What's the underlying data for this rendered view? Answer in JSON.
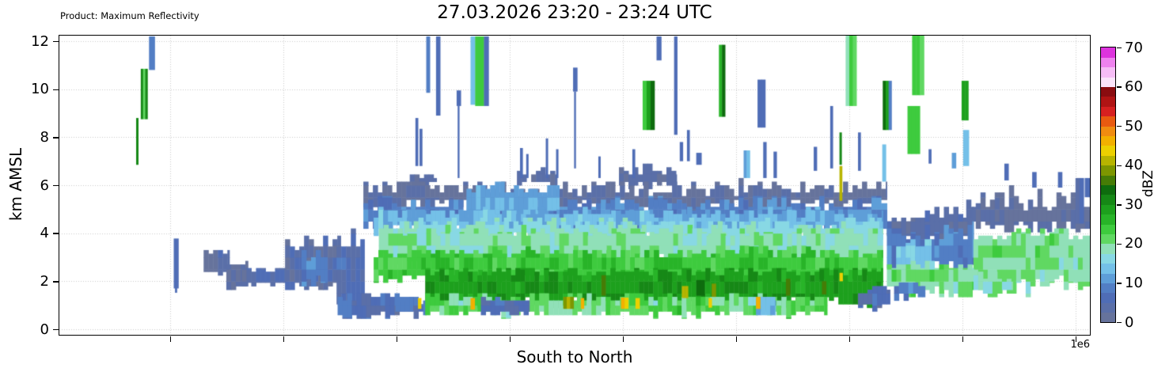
{
  "header": {
    "product_label": "Product: Maximum Reflectivity",
    "title": "27.03.2026 23:20 - 23:24 UTC"
  },
  "axes": {
    "x": {
      "label": "South to North",
      "offset_label": "1e6",
      "tick_fracs": [
        10.75,
        21.74,
        32.72,
        43.7,
        54.69,
        65.67,
        76.65,
        87.63,
        98.62
      ],
      "tick_labels_shown": false
    },
    "y": {
      "label": "km AMSL",
      "ticks": [
        0,
        2,
        4,
        6,
        8,
        10,
        12
      ],
      "range_km": [
        0,
        12.2
      ]
    }
  },
  "colorbar": {
    "label": "dBZ",
    "ticks": [
      0,
      10,
      20,
      30,
      40,
      50,
      60,
      70
    ],
    "range": [
      0,
      70
    ],
    "step_dbz": 2.5,
    "colors": [
      "#66739c",
      "#5a6fa8",
      "#4f6db6",
      "#527ec4",
      "#5e9ed8",
      "#74c0e8",
      "#88d8e4",
      "#90e0b8",
      "#60d862",
      "#3ecb3e",
      "#28b428",
      "#1da01d",
      "#168816",
      "#0e6c0e",
      "#467c06",
      "#7d9600",
      "#b7b400",
      "#ecd000",
      "#f2b000",
      "#f08c10",
      "#e85a10",
      "#d62020",
      "#b01414",
      "#8a0c10",
      "#fbe5fb",
      "#f6bdf6",
      "#ee82ee",
      "#dd33dd"
    ]
  },
  "chart_data": {
    "type": "heatmap",
    "description": "Vertical cross-section (south to north) of maximum radar reflectivity (dBZ) versus altitude (km AMSL). Stratiform precipitation layer below ~6.3 km with embedded 30-35 dBZ core at 1.3-2.6 km and isolated elevated echoes up to 12 km.",
    "noise_seed": 7,
    "region_format": [
      "x0_pct",
      "x1_pct",
      "y0_km",
      "y1_km",
      "dbz",
      "top_jitter_km",
      "bottom_jitter_km",
      "dbz_jitter"
    ],
    "regions": [
      [
        14.0,
        16.5,
        2.45,
        3.35,
        6,
        0.15,
        0.1,
        3
      ],
      [
        16.2,
        18.3,
        1.9,
        2.95,
        6,
        0.15,
        0.1,
        3
      ],
      [
        17.7,
        22.0,
        2.0,
        2.62,
        7,
        0.12,
        0.08,
        3
      ],
      [
        21.9,
        27.3,
        1.95,
        4.05,
        8,
        0.45,
        0.15,
        4
      ],
      [
        23.5,
        26.0,
        2.2,
        3.3,
        12,
        0.3,
        0.2,
        3
      ],
      [
        26.9,
        29.6,
        1.3,
        4.3,
        10,
        0.5,
        0.3,
        4
      ],
      [
        34.0,
        36.6,
        6.2,
        6.55,
        5,
        0.15,
        0.1,
        2
      ],
      [
        44.4,
        48.3,
        6.25,
        6.8,
        5,
        0.25,
        0.15,
        2
      ],
      [
        54.3,
        59.9,
        6.2,
        7.0,
        5,
        0.3,
        0.15,
        2
      ],
      [
        29.5,
        80.3,
        5.45,
        6.25,
        5,
        0.35,
        0.25,
        3
      ],
      [
        88.0,
        100,
        4.6,
        6.0,
        5,
        0.5,
        0.3,
        3
      ],
      [
        80.3,
        88.7,
        4.0,
        5.3,
        6,
        0.45,
        0.2,
        3
      ],
      [
        29.5,
        80.3,
        4.55,
        5.6,
        12,
        0.3,
        0.2,
        3
      ],
      [
        39.5,
        48.5,
        5.0,
        6.15,
        14,
        0.25,
        0.2,
        2
      ],
      [
        30.5,
        79.9,
        4.35,
        5.05,
        16,
        0.2,
        0.2,
        3
      ],
      [
        80.3,
        88.7,
        2.9,
        4.5,
        12,
        0.4,
        0.3,
        3
      ],
      [
        81.2,
        84.6,
        2.7,
        3.75,
        16,
        0.2,
        0.2,
        2
      ],
      [
        33.0,
        79.9,
        4.0,
        4.65,
        19,
        0.25,
        0.2,
        2
      ],
      [
        31.0,
        79.9,
        3.1,
        4.35,
        23,
        0.25,
        0.2,
        4
      ],
      [
        30.5,
        79.9,
        2.3,
        3.4,
        27,
        0.2,
        0.2,
        3
      ],
      [
        88.7,
        100,
        2.2,
        4.3,
        24,
        0.3,
        0.4,
        4
      ],
      [
        80.3,
        88.7,
        1.8,
        2.95,
        24,
        0.2,
        0.25,
        4
      ],
      [
        35.5,
        79.9,
        1.35,
        2.6,
        32,
        0.2,
        0.25,
        3
      ],
      [
        27.0,
        35.6,
        0.75,
        1.6,
        11,
        0.25,
        0.15,
        5
      ],
      [
        35.5,
        74.5,
        0.78,
        1.5,
        26,
        0.15,
        0.15,
        5
      ],
      [
        88.7,
        92.5,
        1.8,
        2.45,
        22,
        0.2,
        0.2,
        3
      ],
      [
        81.0,
        84.0,
        1.55,
        2.05,
        12,
        0.15,
        0.15,
        3
      ],
      [
        32.6,
        34.3,
        0.82,
        1.38,
        11,
        0.1,
        0.1,
        3
      ],
      [
        40.9,
        45.6,
        0.8,
        1.32,
        9,
        0.1,
        0.1,
        4
      ],
      [
        67.6,
        69.5,
        0.73,
        1.38,
        15,
        0.1,
        0.1,
        2
      ],
      [
        77.5,
        80.6,
        1.1,
        1.75,
        10,
        0.15,
        0.15,
        4
      ]
    ],
    "cell_format": [
      "x0_pct",
      "x1_pct",
      "y0_km",
      "y1_km",
      "dbz",
      "optional_substrip_dbz_list"
    ],
    "cells": [
      [
        8.7,
        9.25,
        10.8,
        12.2,
        8
      ],
      [
        7.9,
        8.55,
        8.75,
        10.85,
        25,
        [
          32,
          22,
          30
        ]
      ],
      [
        7.45,
        7.65,
        6.85,
        8.8,
        31
      ],
      [
        11.1,
        11.55,
        1.7,
        3.78,
        7
      ],
      [
        11.22,
        11.4,
        1.52,
        1.72,
        6
      ],
      [
        34.55,
        34.8,
        6.8,
        8.8,
        6
      ],
      [
        34.95,
        35.2,
        6.8,
        8.35,
        6
      ],
      [
        35.6,
        35.95,
        9.85,
        12.2,
        8
      ],
      [
        36.55,
        36.95,
        8.9,
        12.2,
        7
      ],
      [
        38.55,
        38.95,
        9.3,
        9.95,
        7
      ],
      [
        38.65,
        38.8,
        6.3,
        9.3,
        6
      ],
      [
        39.9,
        40.35,
        9.35,
        12.2,
        13
      ],
      [
        40.35,
        41.2,
        9.3,
        12.2,
        24
      ],
      [
        41.2,
        41.65,
        9.3,
        12.2,
        7
      ],
      [
        44.7,
        44.95,
        6.3,
        7.55,
        6
      ],
      [
        45.3,
        45.5,
        6.3,
        7.3,
        6
      ],
      [
        47.2,
        47.4,
        6.3,
        7.95,
        6
      ],
      [
        48.2,
        48.4,
        6.3,
        7.5,
        6
      ],
      [
        49.85,
        50.25,
        9.9,
        10.9,
        6
      ],
      [
        49.95,
        50.1,
        6.7,
        9.9,
        5
      ],
      [
        52.3,
        52.5,
        6.3,
        7.2,
        6
      ],
      [
        55.6,
        55.85,
        6.3,
        7.5,
        6
      ],
      [
        56.6,
        57.75,
        8.3,
        10.35,
        26,
        [
          24,
          28,
          33
        ]
      ],
      [
        57.95,
        58.4,
        11.2,
        12.2,
        7
      ],
      [
        59.65,
        59.95,
        8.1,
        12.2,
        6
      ],
      [
        60.2,
        60.5,
        7.0,
        7.8,
        6
      ],
      [
        60.9,
        61.15,
        7.0,
        8.3,
        6
      ],
      [
        61.8,
        62.3,
        6.85,
        7.35,
        6
      ],
      [
        64.0,
        64.6,
        8.85,
        11.85,
        29,
        [
          26,
          33
        ]
      ],
      [
        66.4,
        67.0,
        6.3,
        7.45,
        14
      ],
      [
        67.75,
        68.5,
        8.4,
        10.4,
        8
      ],
      [
        68.3,
        68.6,
        6.3,
        7.8,
        6
      ],
      [
        69.3,
        69.6,
        6.3,
        7.4,
        6
      ],
      [
        73.2,
        73.5,
        6.6,
        7.6,
        6
      ],
      [
        74.8,
        75.05,
        6.7,
        9.3,
        6
      ],
      [
        75.7,
        75.9,
        6.85,
        8.2,
        32
      ],
      [
        75.7,
        75.95,
        5.35,
        6.8,
        41
      ],
      [
        76.3,
        77.35,
        9.3,
        12.25,
        23
      ],
      [
        77.5,
        77.75,
        6.6,
        8.2,
        7
      ],
      [
        79.85,
        80.2,
        6.15,
        7.7,
        13
      ],
      [
        79.9,
        80.75,
        8.3,
        10.35,
        31,
        [
          33,
          29,
          8
        ]
      ],
      [
        82.3,
        83.5,
        7.3,
        9.3,
        24
      ],
      [
        82.75,
        83.9,
        9.75,
        12.25,
        25
      ],
      [
        84.35,
        84.6,
        6.9,
        7.5,
        6
      ],
      [
        86.6,
        87.0,
        6.7,
        7.35,
        12
      ],
      [
        87.55,
        88.2,
        8.7,
        10.35,
        32
      ],
      [
        87.7,
        88.25,
        6.8,
        8.3,
        13
      ],
      [
        91.7,
        92.1,
        6.2,
        6.9,
        6
      ],
      [
        94.4,
        94.8,
        5.9,
        6.55,
        6
      ],
      [
        96.9,
        97.3,
        5.9,
        6.55,
        6
      ],
      [
        98.6,
        99.4,
        4.4,
        6.3,
        7
      ],
      [
        99.5,
        100.0,
        5.5,
        6.3,
        6
      ],
      [
        52.6,
        53.0,
        1.4,
        2.25,
        37
      ],
      [
        61.8,
        62.6,
        1.4,
        2.05,
        36
      ],
      [
        63.3,
        63.7,
        1.35,
        1.9,
        38
      ],
      [
        70.5,
        70.9,
        1.4,
        2.1,
        36
      ],
      [
        74.0,
        74.4,
        1.45,
        2.0,
        36
      ],
      [
        34.8,
        35.1,
        0.85,
        1.3,
        43
      ],
      [
        39.9,
        40.3,
        0.82,
        1.3,
        46
      ],
      [
        48.9,
        49.9,
        0.85,
        1.35,
        43
      ],
      [
        50.6,
        50.9,
        0.85,
        1.3,
        46
      ],
      [
        54.5,
        55.2,
        0.85,
        1.32,
        46
      ],
      [
        55.9,
        56.3,
        0.85,
        1.3,
        43
      ],
      [
        60.4,
        61.0,
        1.3,
        1.8,
        43
      ],
      [
        63.0,
        63.3,
        0.9,
        1.3,
        43
      ],
      [
        67.6,
        68.0,
        0.85,
        1.35,
        46
      ],
      [
        75.7,
        76.0,
        2.0,
        2.35,
        43
      ]
    ]
  }
}
